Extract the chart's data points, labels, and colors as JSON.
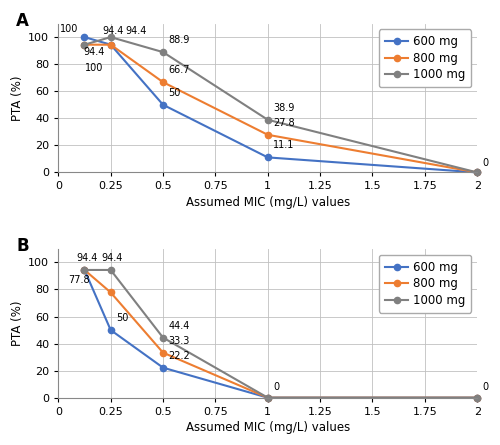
{
  "panel_A": {
    "title": "A",
    "mic_values": [
      0.125,
      0.25,
      0.5,
      1.0,
      2.0
    ],
    "series": {
      "600 mg": {
        "values": [
          100.0,
          94.4,
          50.0,
          11.1,
          0.0
        ],
        "color": "#4472C4",
        "marker": "o"
      },
      "800 mg": {
        "values": [
          94.4,
          94.4,
          66.7,
          27.8,
          0.0
        ],
        "color": "#ED7D31",
        "marker": "o"
      },
      "1000 mg": {
        "values": [
          94.4,
          100.0,
          88.9,
          38.9,
          0.0
        ],
        "color": "#808080",
        "marker": "o"
      }
    },
    "annotations": [
      [
        0.125,
        100.0,
        "100",
        -18,
        2,
        "left"
      ],
      [
        0.25,
        94.4,
        "94.4",
        2,
        6,
        "center"
      ],
      [
        0.25,
        94.4,
        "94.4",
        18,
        6,
        "center"
      ],
      [
        0.25,
        100.0,
        "94.4",
        -12,
        -14,
        "center"
      ],
      [
        0.25,
        100.0,
        "100",
        -12,
        -26,
        "center"
      ],
      [
        0.5,
        88.9,
        "88.9",
        4,
        5,
        "left"
      ],
      [
        0.5,
        66.7,
        "66.7",
        4,
        5,
        "left"
      ],
      [
        0.5,
        50.0,
        "50",
        4,
        5,
        "left"
      ],
      [
        1.0,
        38.9,
        "38.9",
        4,
        5,
        "left"
      ],
      [
        1.0,
        27.8,
        "27.8",
        4,
        5,
        "left"
      ],
      [
        1.0,
        11.1,
        "11.1",
        4,
        5,
        "left"
      ],
      [
        2.0,
        0.0,
        "0",
        4,
        3,
        "left"
      ]
    ]
  },
  "panel_B": {
    "title": "B",
    "mic_values": [
      0.125,
      0.25,
      0.5,
      1.0,
      2.0
    ],
    "series": {
      "600 mg": {
        "values": [
          94.4,
          50.0,
          22.2,
          0.0,
          0.0
        ],
        "color": "#4472C4",
        "marker": "o"
      },
      "800 mg": {
        "values": [
          94.4,
          77.8,
          33.3,
          0.0,
          0.0
        ],
        "color": "#ED7D31",
        "marker": "o"
      },
      "1000 mg": {
        "values": [
          94.4,
          94.4,
          44.4,
          0.0,
          0.0
        ],
        "color": "#808080",
        "marker": "o"
      }
    },
    "annotations": [
      [
        0.125,
        94.4,
        "94.4",
        2,
        5,
        "center"
      ],
      [
        0.125,
        94.4,
        "94.4",
        20,
        5,
        "center"
      ],
      [
        0.25,
        77.8,
        "77.8",
        -15,
        5,
        "right"
      ],
      [
        0.25,
        50.0,
        "50",
        4,
        5,
        "left"
      ],
      [
        0.5,
        44.4,
        "44.4",
        4,
        5,
        "left"
      ],
      [
        0.5,
        33.3,
        "33.3",
        4,
        5,
        "left"
      ],
      [
        0.5,
        22.2,
        "22.2",
        4,
        5,
        "left"
      ],
      [
        1.0,
        0.0,
        "0",
        4,
        4,
        "left"
      ],
      [
        2.0,
        0.0,
        "0",
        4,
        4,
        "left"
      ]
    ]
  },
  "xlabel": "Assumed MIC (mg/L) values",
  "ylabel": "PTA (%)",
  "xlim": [
    0,
    2.0
  ],
  "ylim": [
    0,
    110
  ],
  "xticks": [
    0,
    0.25,
    0.5,
    0.75,
    1.0,
    1.25,
    1.5,
    1.75,
    2.0
  ],
  "xticklabels": [
    "0",
    "0.25",
    "0.5",
    "0.75",
    "1",
    "1.25",
    "1.5",
    "1.75",
    "2"
  ],
  "yticks": [
    0,
    20,
    40,
    60,
    80,
    100
  ],
  "legend_labels": [
    "600 mg",
    "800 mg",
    "1000 mg"
  ],
  "legend_colors": [
    "#4472C4",
    "#ED7D31",
    "#808080"
  ],
  "legend_markers": [
    "o",
    "o",
    "o"
  ],
  "grid_color": "#C0C0C0",
  "background_color": "#FFFFFF",
  "annotation_fontsize": 7.0,
  "axis_label_fontsize": 8.5,
  "tick_fontsize": 8.0,
  "title_fontsize": 12,
  "legend_fontsize": 8.5,
  "linewidth": 1.5,
  "markersize": 4.5
}
